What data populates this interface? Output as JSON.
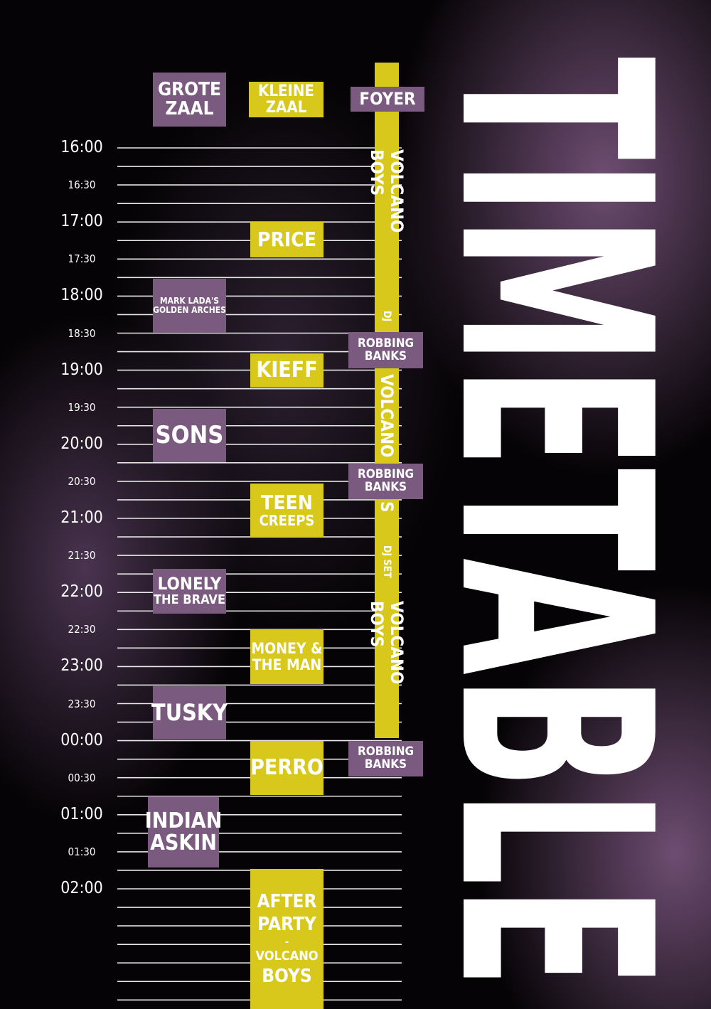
{
  "title": "TIMETABLE",
  "stages": [
    "GROTE ZAAL",
    "KLEINE ZAAL",
    "FOYER"
  ],
  "times": [
    "16:00",
    "16:30",
    "17:00",
    "17:30",
    "18:00",
    "18:30",
    "19:00",
    "19:30",
    "20:00",
    "20:30",
    "21:00",
    "21:30",
    "22:00",
    "22:30",
    "23:00",
    "23:30",
    "00:00",
    "00:30",
    "01:00",
    "01:30",
    "02:00"
  ],
  "grote_zaal": [
    {
      "lines": [
        "MARK LADA'S",
        "GOLDEN ARCHES"
      ]
    },
    {
      "lines": [
        "SONS"
      ]
    },
    {
      "lines": [
        "LONELY",
        "THE BRAVE"
      ]
    },
    {
      "lines": [
        "TUSKY"
      ]
    },
    {
      "lines": [
        "INDIAN",
        "ASKIN"
      ]
    }
  ],
  "kleine_zaal": [
    {
      "lines": [
        "PRICE"
      ]
    },
    {
      "lines": [
        "KIEFF"
      ]
    },
    {
      "lines": [
        "TEEN",
        "CREEPS"
      ]
    },
    {
      "lines": [
        "MONEY &",
        "THE MAN"
      ]
    },
    {
      "lines": [
        "PERRO"
      ]
    },
    {
      "lines": [
        "AFTER",
        "PARTY",
        "-",
        "VOLCANO",
        "BOYS"
      ]
    }
  ],
  "foyer": {
    "vertical": [
      "VOLCANO BOYS",
      "DJ",
      "VOLCANO",
      "S",
      "DJ SET",
      "VOLCANO BOYS"
    ],
    "boxes": [
      {
        "lines": [
          "ROBBING",
          "BANKS"
        ]
      },
      {
        "lines": [
          "ROBBING",
          "BANKS"
        ]
      },
      {
        "lines": [
          "ROBBING",
          "BANKS"
        ]
      }
    ]
  }
}
